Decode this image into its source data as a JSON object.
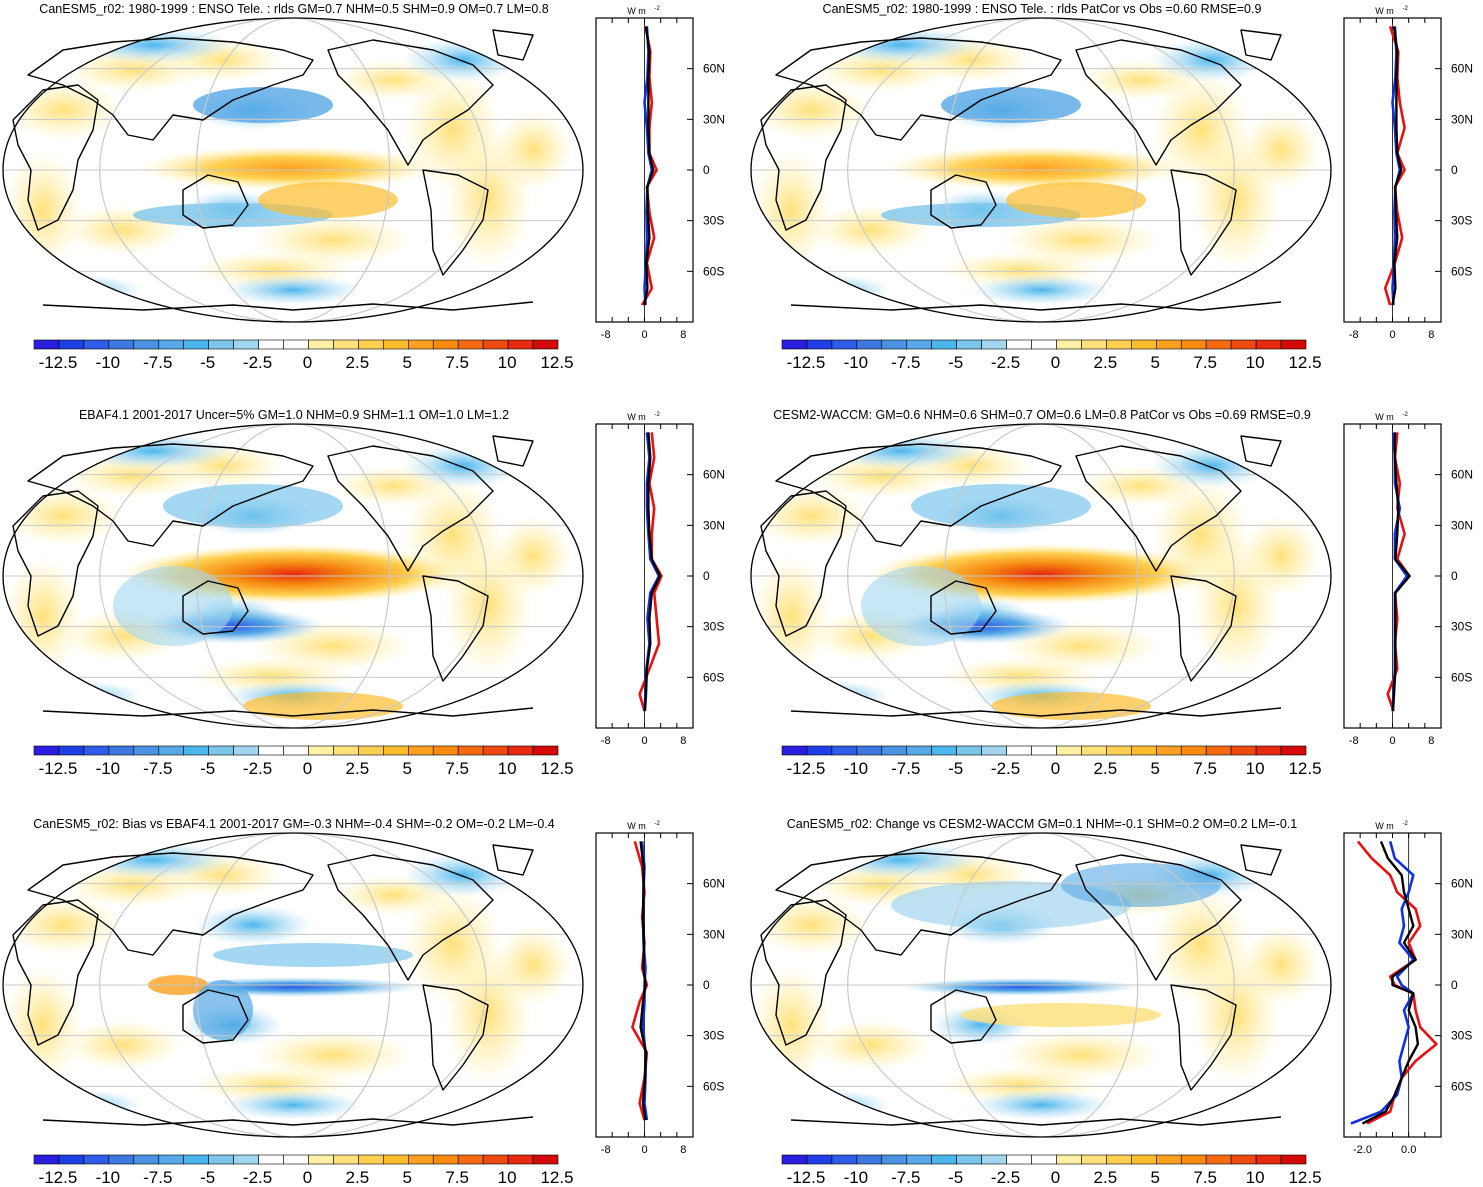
{
  "units_label": "W m",
  "units_exponent": "-2",
  "lat_ticks": [
    "60N",
    "30N",
    "0",
    "30S",
    "60S"
  ],
  "lat_tick_values": [
    60,
    30,
    0,
    -30,
    -60
  ],
  "colorbar": {
    "labels": [
      "-12.5",
      "-10",
      "-7.5",
      "-5",
      "-2.5",
      "0",
      "2.5",
      "5",
      "7.5",
      "10",
      "12.5"
    ],
    "colors": [
      "#2b1ee0",
      "#1f3fe6",
      "#2e5ee8",
      "#3c78e0",
      "#4a92e2",
      "#56a8e6",
      "#4bb6ec",
      "#7cc6ec",
      "#a2d6f0",
      "#ffffff",
      "#ffffff",
      "#fff1a6",
      "#ffe07a",
      "#ffd050",
      "#ffbd2e",
      "#ffa020",
      "#fb8a10",
      "#f56a10",
      "#ee4a10",
      "#e82a10",
      "#d40a0a"
    ]
  },
  "line_colors": {
    "model": "#e81010",
    "obs": "#1030e0",
    "diff": "#000000"
  },
  "panels": [
    {
      "title": "CanESM5_r02: 1980-1999 : ENSO Tele. : rlds GM=0.7 NHM=0.5 SHM=0.9 OM=0.7 LM=0.8",
      "zonal_xticks": [
        "-8",
        "0",
        "8"
      ],
      "chart_data": {
        "type": "line",
        "xlim": [
          -10,
          10
        ],
        "ylim": [
          -90,
          90
        ],
        "xlabel": "W m-2",
        "y": [
          85,
          70,
          55,
          40,
          25,
          10,
          0,
          -10,
          -25,
          -40,
          -55,
          -70,
          -80
        ],
        "series": [
          {
            "name": "model",
            "values": [
              0.2,
              1.2,
              1.0,
              1.5,
              1.0,
              1.0,
              2.5,
              0.5,
              1.0,
              2.0,
              0.5,
              1.5,
              -0.5
            ]
          },
          {
            "name": "obs",
            "values": [
              0.5,
              0.8,
              0.6,
              0.0,
              0.5,
              0.8,
              1.5,
              0.6,
              0.4,
              0.5,
              0.3,
              0.0,
              0.2
            ]
          },
          {
            "name": "diff",
            "values": [
              0.3,
              1.0,
              0.8,
              0.8,
              0.8,
              1.0,
              1.8,
              0.6,
              0.7,
              1.0,
              0.4,
              0.6,
              0.0
            ]
          }
        ]
      }
    },
    {
      "title": "CanESM5_r02: 1980-1999 : ENSO Tele. : rlds PatCor vs Obs =0.60 RMSE=0.9",
      "zonal_xticks": [
        "-8",
        "0",
        "8"
      ],
      "chart_data": {
        "type": "line",
        "xlim": [
          -10,
          10
        ],
        "ylim": [
          -90,
          90
        ],
        "xlabel": "W m-2",
        "y": [
          85,
          70,
          55,
          40,
          25,
          10,
          0,
          -10,
          -25,
          -40,
          -55,
          -70,
          -80
        ],
        "series": [
          {
            "name": "model",
            "values": [
              -0.5,
              1.2,
              1.0,
              1.5,
              2.5,
              1.0,
              2.5,
              0.5,
              1.0,
              2.0,
              0.5,
              -1.5,
              -0.5
            ]
          },
          {
            "name": "obs",
            "values": [
              0.5,
              0.8,
              0.6,
              0.0,
              0.5,
              0.8,
              1.5,
              0.6,
              0.4,
              0.5,
              0.3,
              0.0,
              0.2
            ]
          },
          {
            "name": "diff",
            "values": [
              0.3,
              1.0,
              0.8,
              0.8,
              0.8,
              1.0,
              1.8,
              0.6,
              0.7,
              1.0,
              0.4,
              0.6,
              0.0
            ]
          }
        ]
      }
    },
    {
      "title": "EBAF4.1 2001-2017 Uncer=5% GM=1.0 NHM=0.9 SHM=1.1 OM=1.0 LM=1.2",
      "zonal_xticks": [
        "-8",
        "0",
        "8"
      ],
      "chart_data": {
        "type": "line",
        "xlim": [
          -10,
          10
        ],
        "ylim": [
          -90,
          90
        ],
        "xlabel": "W m-2",
        "y": [
          85,
          70,
          55,
          40,
          25,
          10,
          0,
          -10,
          -25,
          -40,
          -55,
          -70,
          -80
        ],
        "series": [
          {
            "name": "model",
            "values": [
              1.5,
              2.0,
              1.0,
              2.0,
              1.5,
              1.5,
              3.5,
              2.0,
              2.5,
              3.0,
              1.0,
              -1.0,
              0.0
            ]
          },
          {
            "name": "obs",
            "values": [
              0.5,
              1.0,
              0.5,
              0.5,
              0.8,
              1.2,
              3.0,
              1.2,
              0.6,
              1.0,
              0.4,
              0.2,
              0.0
            ]
          },
          {
            "name": "diff",
            "values": [
              0.8,
              1.2,
              0.8,
              0.8,
              1.0,
              1.5,
              3.2,
              1.5,
              1.0,
              1.2,
              0.5,
              0.3,
              0.1
            ]
          }
        ]
      }
    },
    {
      "title": "CESM2-WACCM: GM=0.6 NHM=0.6 SHM=0.7 OM=0.6 LM=0.8 PatCor vs Obs =0.69 RMSE=0.9",
      "zonal_xticks": [
        "-8",
        "0",
        "8"
      ],
      "chart_data": {
        "type": "line",
        "xlim": [
          -10,
          10
        ],
        "ylim": [
          -90,
          90
        ],
        "xlabel": "W m-2",
        "y": [
          85,
          70,
          55,
          40,
          25,
          10,
          0,
          -10,
          -25,
          -40,
          -55,
          -70,
          -80
        ],
        "series": [
          {
            "name": "model",
            "values": [
              1.0,
              0.5,
              1.5,
              1.0,
              2.5,
              1.0,
              3.5,
              0.5,
              1.0,
              0.5,
              1.0,
              -1.0,
              0.2
            ]
          },
          {
            "name": "obs",
            "values": [
              0.2,
              0.5,
              0.5,
              1.5,
              0.5,
              0.5,
              3.0,
              0.5,
              0.5,
              0.5,
              0.5,
              0.2,
              0.0
            ]
          },
          {
            "name": "diff",
            "values": [
              0.5,
              0.5,
              0.8,
              1.2,
              1.0,
              0.6,
              3.5,
              0.6,
              0.6,
              0.6,
              0.6,
              0.3,
              0.1
            ]
          }
        ]
      }
    },
    {
      "title": "CanESM5_r02: Bias vs EBAF4.1 2001-2017 GM=-0.3 NHM=-0.4 SHM=-0.2 OM=-0.2 LM=-0.4",
      "zonal_xticks": [
        "-8",
        "0",
        "8"
      ],
      "chart_data": {
        "type": "line",
        "xlim": [
          -10,
          10
        ],
        "ylim": [
          -90,
          90
        ],
        "xlabel": "W m-2",
        "y": [
          85,
          70,
          55,
          40,
          25,
          10,
          0,
          -10,
          -25,
          -40,
          -55,
          -70,
          -80
        ],
        "series": [
          {
            "name": "model",
            "values": [
              -2.0,
              -0.5,
              0.0,
              -0.5,
              0.0,
              -0.5,
              0.5,
              -1.0,
              -2.5,
              0.5,
              0.0,
              -1.0,
              0.0
            ]
          },
          {
            "name": "obs",
            "values": [
              -0.5,
              0.0,
              -0.2,
              -0.3,
              -0.2,
              0.2,
              0.0,
              0.0,
              -0.3,
              0.2,
              0.2,
              0.0,
              0.5
            ]
          },
          {
            "name": "diff",
            "values": [
              -0.8,
              -0.2,
              -0.2,
              -0.3,
              -0.1,
              -0.2,
              0.2,
              -0.3,
              -0.8,
              0.3,
              0.1,
              -0.3,
              0.2
            ]
          }
        ]
      }
    },
    {
      "title": "CanESM5_r02: Change vs CESM2-WACCM GM=0.1 NHM=-0.1 SHM=0.2 OM=0.2 LM=-0.1",
      "zonal_xticks": [
        "-2.0",
        "0.0"
      ],
      "chart_data": {
        "type": "line",
        "xlim": [
          -2.8,
          1.4
        ],
        "ylim": [
          -90,
          90
        ],
        "xlabel": "W m-2",
        "y": [
          85,
          75,
          65,
          55,
          45,
          35,
          25,
          15,
          5,
          0,
          -5,
          -15,
          -25,
          -35,
          -45,
          -55,
          -65,
          -75,
          -82
        ],
        "series": [
          {
            "name": "model",
            "values": [
              -2.2,
              -1.6,
              -0.8,
              -0.5,
              0.3,
              0.5,
              0.0,
              0.3,
              -0.8,
              -0.6,
              0.2,
              0.3,
              0.5,
              1.2,
              0.3,
              -0.3,
              -0.6,
              -0.8,
              -1.8
            ]
          },
          {
            "name": "obs",
            "values": [
              -0.8,
              -0.6,
              0.2,
              0.0,
              -0.3,
              -0.2,
              -0.4,
              0.2,
              -0.5,
              -0.3,
              0.2,
              -0.2,
              0.0,
              -0.2,
              -0.4,
              -0.3,
              -0.5,
              -1.2,
              -2.5
            ]
          },
          {
            "name": "diff",
            "values": [
              -1.2,
              -0.9,
              -0.3,
              -0.2,
              0.0,
              0.2,
              -0.2,
              0.3,
              -0.7,
              -0.7,
              0.2,
              0.0,
              0.3,
              0.4,
              0.0,
              -0.3,
              -0.6,
              -1.0,
              -2.0
            ]
          }
        ]
      }
    }
  ]
}
